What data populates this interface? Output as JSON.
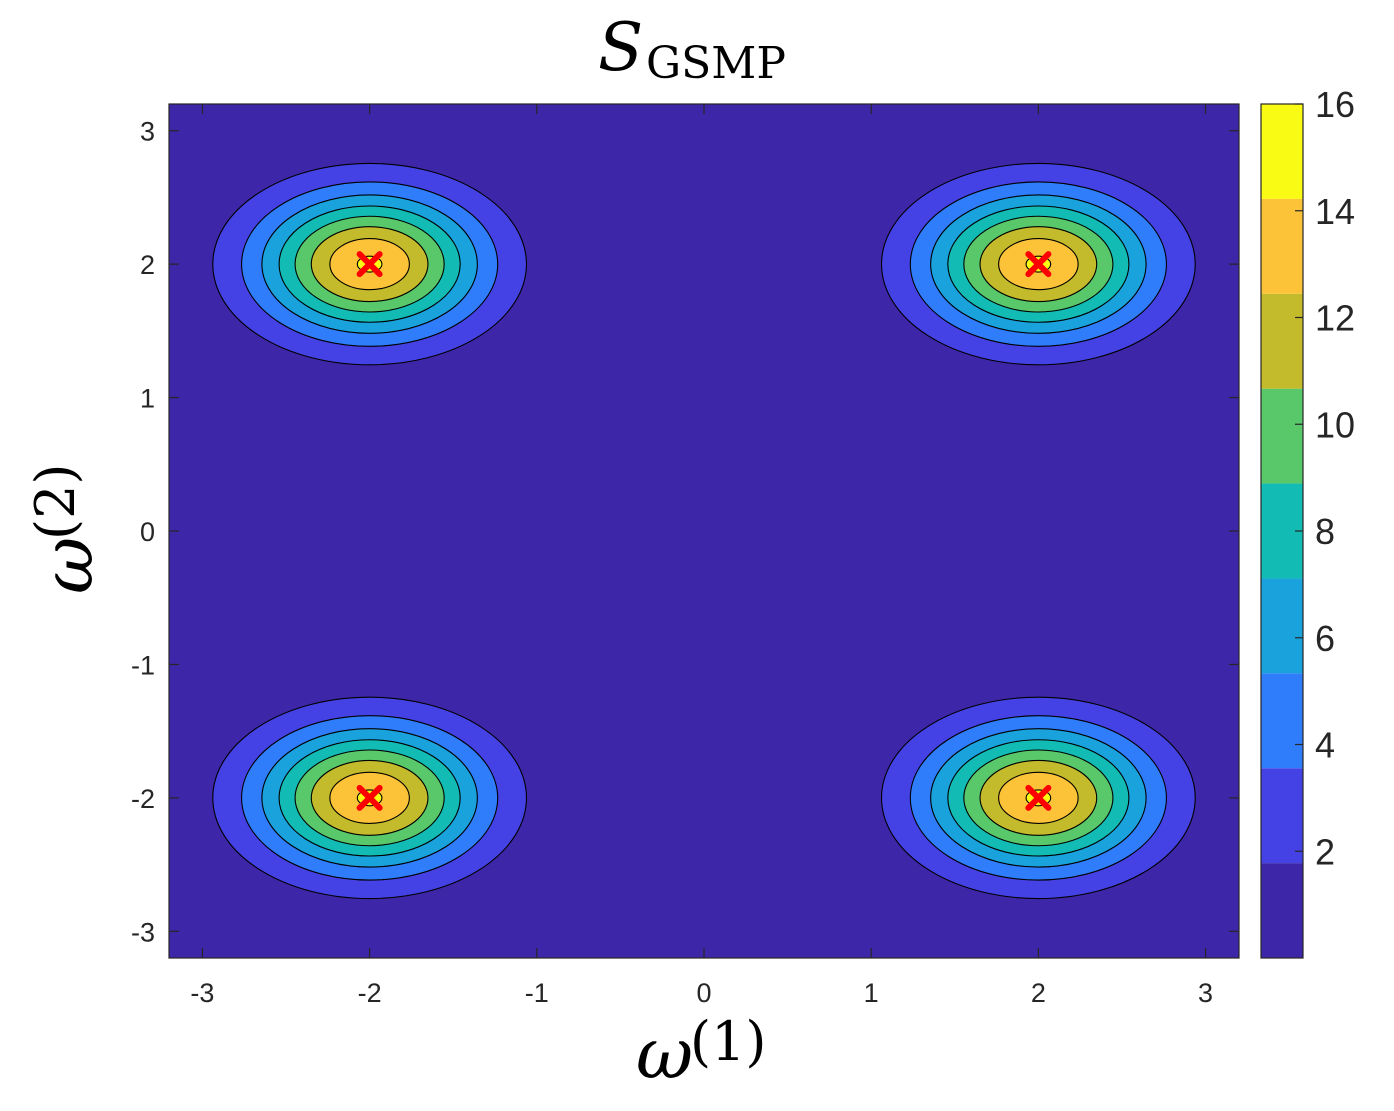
{
  "chart_data": {
    "type": "contour",
    "title_main": "S",
    "title_sub": "GSMP",
    "xlabel_main": "ω",
    "xlabel_sup": "(1)",
    "ylabel_main": "ω",
    "ylabel_sup": "(2)",
    "xlim": [
      -3.2,
      3.2
    ],
    "ylim": [
      -3.2,
      3.2
    ],
    "xticks": [
      -3,
      -2,
      -1,
      0,
      1,
      2,
      3
    ],
    "yticks": [
      -3,
      -2,
      -1,
      0,
      1,
      2,
      3
    ],
    "xtick_labels": [
      "-3",
      "-2",
      "-1",
      "0",
      "1",
      "2",
      "3"
    ],
    "ytick_labels": [
      "-3",
      "-2",
      "-1",
      "0",
      "1",
      "2",
      "3"
    ],
    "peaks": [
      {
        "x": -2,
        "y": 2,
        "value": 16
      },
      {
        "x": 2,
        "y": 2,
        "value": 16
      },
      {
        "x": -2,
        "y": -2,
        "value": 16
      },
      {
        "x": 2,
        "y": -2,
        "value": 16
      }
    ],
    "contour_levels": [
      2,
      4,
      6,
      8,
      10,
      12,
      14,
      16
    ],
    "sigma_x": 0.46,
    "sigma_y": 0.37,
    "colorbar": {
      "min": 0,
      "max": 16,
      "ticks": [
        2,
        4,
        6,
        8,
        10,
        12,
        14,
        16
      ],
      "tick_labels": [
        "2",
        "4",
        "6",
        "8",
        "10",
        "12",
        "14",
        "16"
      ]
    },
    "level_colors": [
      "#3e26a8",
      "#4542e5",
      "#2f7dfb",
      "#1aa2dd",
      "#13bbb5",
      "#58c86b",
      "#c3ba2c",
      "#fdc338",
      "#f9fb15"
    ],
    "marker": {
      "symbol": "x",
      "color": "#ff0000"
    },
    "grid": false
  }
}
